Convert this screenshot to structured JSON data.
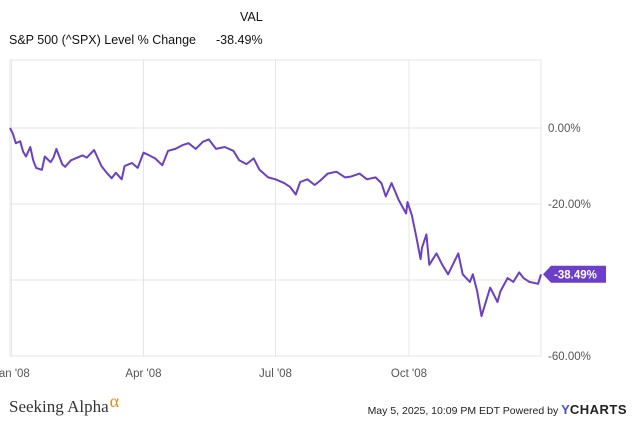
{
  "header": {
    "column_title": "VAL",
    "series_label": "S&P 500 (^SPX) Level % Change",
    "series_value": "-38.49%"
  },
  "footer": {
    "brand": "Seeking Alpha",
    "brand_mark": "α",
    "timestamp": "May 5, 2025, 10:09 PM EDT",
    "powered_by": "Powered by",
    "provider_y": "Y",
    "provider_rest": "CHARTS"
  },
  "colors": {
    "line": "#6b3fc7",
    "grid": "#e6e6e6",
    "callout": "#6b3fc7",
    "brand_alpha": "#e88a1a",
    "provider_y": "#4b4fd6"
  },
  "chart_data": {
    "type": "line",
    "series": [
      {
        "name": "S&P 500 (^SPX) Level % Change",
        "x": [
          "2007-12-31",
          "2008-01-02",
          "2008-01-04",
          "2008-01-07",
          "2008-01-09",
          "2008-01-11",
          "2008-01-14",
          "2008-01-16",
          "2008-01-18",
          "2008-01-22",
          "2008-01-24",
          "2008-01-28",
          "2008-01-30",
          "2008-02-01",
          "2008-02-05",
          "2008-02-07",
          "2008-02-11",
          "2008-02-14",
          "2008-02-19",
          "2008-02-22",
          "2008-02-27",
          "2008-03-03",
          "2008-03-06",
          "2008-03-10",
          "2008-03-13",
          "2008-03-17",
          "2008-03-19",
          "2008-03-24",
          "2008-03-28",
          "2008-04-01",
          "2008-04-04",
          "2008-04-09",
          "2008-04-14",
          "2008-04-18",
          "2008-04-23",
          "2008-04-28",
          "2008-05-02",
          "2008-05-07",
          "2008-05-12",
          "2008-05-16",
          "2008-05-21",
          "2008-05-27",
          "2008-06-02",
          "2008-06-06",
          "2008-06-11",
          "2008-06-16",
          "2008-06-20",
          "2008-06-26",
          "2008-07-01",
          "2008-07-07",
          "2008-07-11",
          "2008-07-15",
          "2008-07-18",
          "2008-07-23",
          "2008-07-28",
          "2008-08-01",
          "2008-08-06",
          "2008-08-12",
          "2008-08-18",
          "2008-08-22",
          "2008-08-28",
          "2008-09-02",
          "2008-09-08",
          "2008-09-12",
          "2008-09-15",
          "2008-09-19",
          "2008-09-24",
          "2008-09-29",
          "2008-09-30",
          "2008-10-03",
          "2008-10-06",
          "2008-10-09",
          "2008-10-10",
          "2008-10-13",
          "2008-10-15",
          "2008-10-20",
          "2008-10-24",
          "2008-10-28",
          "2008-11-04",
          "2008-11-07",
          "2008-11-12",
          "2008-11-14",
          "2008-11-17",
          "2008-11-20",
          "2008-11-24",
          "2008-11-26",
          "2008-12-01",
          "2008-12-03",
          "2008-12-08",
          "2008-12-12",
          "2008-12-16",
          "2008-12-19",
          "2008-12-23",
          "2008-12-29",
          "2008-12-31"
        ],
        "values": [
          0.0,
          -1.5,
          -4.0,
          -3.5,
          -6.2,
          -7.5,
          -5.0,
          -8.5,
          -10.5,
          -11.0,
          -7.5,
          -9.0,
          -7.8,
          -5.5,
          -9.5,
          -10.2,
          -8.5,
          -8.0,
          -7.2,
          -7.8,
          -5.8,
          -10.0,
          -11.5,
          -13.2,
          -11.8,
          -13.5,
          -10.0,
          -9.2,
          -10.5,
          -6.5,
          -7.0,
          -8.0,
          -9.8,
          -6.0,
          -5.5,
          -4.5,
          -4.0,
          -5.5,
          -3.6,
          -3.0,
          -5.5,
          -5.0,
          -6.0,
          -8.5,
          -9.5,
          -8.0,
          -11.0,
          -13.0,
          -13.5,
          -14.5,
          -15.5,
          -17.5,
          -14.2,
          -13.5,
          -15.0,
          -13.8,
          -12.0,
          -11.5,
          -13.0,
          -12.8,
          -12.0,
          -13.5,
          -13.0,
          -14.5,
          -18.0,
          -14.5,
          -19.0,
          -22.5,
          -19.5,
          -23.0,
          -28.5,
          -34.5,
          -31.5,
          -28.0,
          -36.0,
          -33.0,
          -36.0,
          -38.5,
          -33.0,
          -38.5,
          -40.5,
          -38.5,
          -43.0,
          -49.5,
          -44.5,
          -42.0,
          -45.8,
          -43.0,
          -39.5,
          -40.5,
          -38.0,
          -39.5,
          -40.5,
          -41.0,
          -38.49
        ]
      }
    ],
    "xlabel": "",
    "ylabel": "",
    "x_ticks": [
      "Jan '08",
      "Apr '08",
      "Jul '08",
      "Oct '08"
    ],
    "x_tick_dates": [
      "2008-01-01",
      "2008-04-01",
      "2008-07-01",
      "2008-10-01"
    ],
    "y_ticks": [
      0,
      -20,
      -40,
      -60
    ],
    "y_tick_labels": [
      "0.00%",
      "-20.00%",
      "",
      "-60.00%"
    ],
    "xlim": [
      "2007-12-31",
      "2008-12-31"
    ],
    "ylim": [
      -60,
      0
    ],
    "last_value_label": "-38.49%",
    "grid": true,
    "legend": "header-table"
  }
}
